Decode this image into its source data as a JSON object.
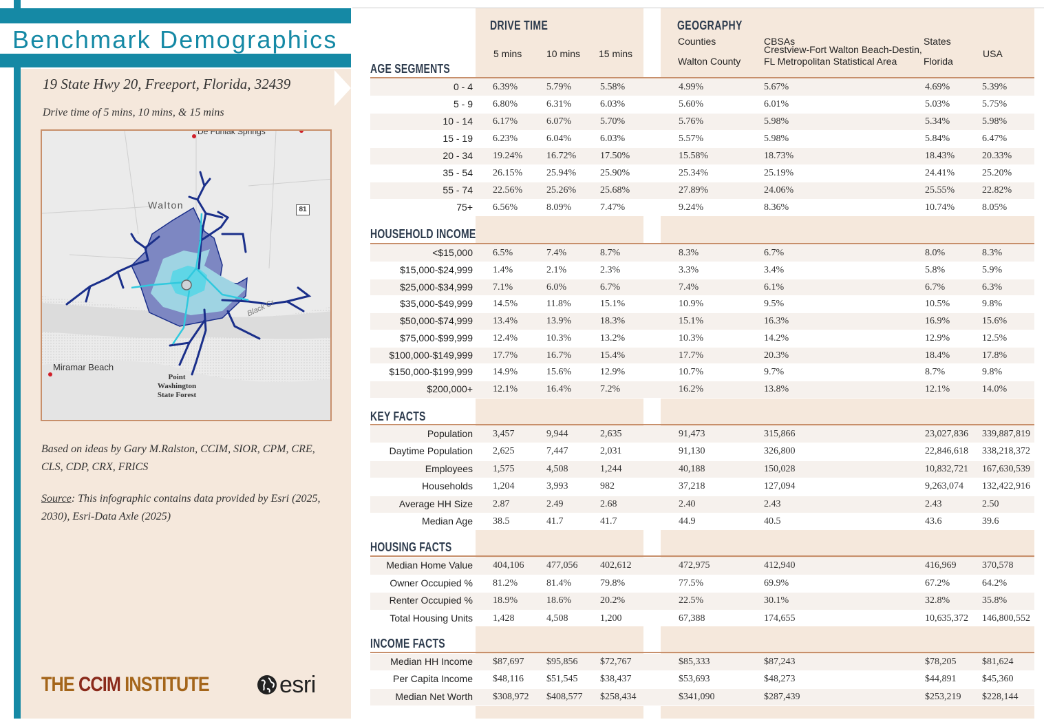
{
  "title": "Benchmark Demographics",
  "address": "19 State Hwy 20, Freeport, Florida, 32439",
  "drive_description": "Drive time of 5 mins, 10 mins, & 15 mins",
  "map": {
    "labels": {
      "defuniak": "De Funiak Springs",
      "walton": "Walton",
      "miramar": "Miramar Beach",
      "pwsf": "Point Washington State Forest",
      "blackcreek": "Black Cr",
      "shield": "81"
    },
    "colors": {
      "zone_15": "#7d87c2",
      "zone_10": "#9fd4e3",
      "zone_5": "#5fd6e6",
      "roads": "#1a2f8a",
      "border": "#c78f6b"
    }
  },
  "credit": "Based on ideas by Gary M.Ralston, CCIM, SIOR, CPM, CRE, CLS, CDP, CRX, FRICS",
  "source_label": "Source",
  "source_text": ": This infographic contains data provided by Esri (2025, 2030), Esri-Data Axle (2025)",
  "logos": {
    "ccim": [
      "THE ",
      "CCIM",
      " INSTITUTE"
    ],
    "esri": "esri"
  },
  "headers": {
    "drive_time": "DRIVE TIME",
    "geography": "GEOGRAPHY",
    "cols": [
      "5 mins",
      "10 mins",
      "15 mins"
    ],
    "counties": "Counties",
    "cbsas": "CBSAs",
    "states": "States",
    "walton_county": "Walton County",
    "cbsa_name": "Crestview-Fort Walton Beach-Destin, FL Metropolitan Statistical Area",
    "florida": "Florida",
    "usa": "USA"
  },
  "sections": [
    {
      "title": "AGE SEGMENTS",
      "rows": [
        {
          "label": "0 - 4",
          "values": [
            "6.39%",
            "5.79%",
            "5.58%",
            "4.99%",
            "5.67%",
            "4.69%",
            "5.39%"
          ]
        },
        {
          "label": "5 - 9",
          "values": [
            "6.80%",
            "6.31%",
            "6.03%",
            "5.60%",
            "6.01%",
            "5.03%",
            "5.75%"
          ]
        },
        {
          "label": "10 - 14",
          "values": [
            "6.17%",
            "6.07%",
            "5.70%",
            "5.76%",
            "5.98%",
            "5.34%",
            "5.98%"
          ]
        },
        {
          "label": "15 - 19",
          "values": [
            "6.23%",
            "6.04%",
            "6.03%",
            "5.57%",
            "5.98%",
            "5.84%",
            "6.47%"
          ]
        },
        {
          "label": "20 - 34",
          "values": [
            "19.24%",
            "16.72%",
            "17.50%",
            "15.58%",
            "18.73%",
            "18.43%",
            "20.33%"
          ]
        },
        {
          "label": "35 - 54",
          "values": [
            "26.15%",
            "25.94%",
            "25.90%",
            "25.34%",
            "25.19%",
            "24.41%",
            "25.20%"
          ]
        },
        {
          "label": "55 - 74",
          "values": [
            "22.56%",
            "25.26%",
            "25.68%",
            "27.89%",
            "24.06%",
            "25.55%",
            "22.82%"
          ]
        },
        {
          "label": "75+",
          "values": [
            "6.56%",
            "8.09%",
            "7.47%",
            "9.24%",
            "8.36%",
            "10.74%",
            "8.05%"
          ]
        }
      ]
    },
    {
      "title": "HOUSEHOLD INCOME",
      "rows": [
        {
          "label": "<$15,000",
          "values": [
            "6.5%",
            "7.4%",
            "8.7%",
            "8.3%",
            "6.7%",
            "8.0%",
            "8.3%"
          ]
        },
        {
          "label": "$15,000-$24,999",
          "values": [
            "1.4%",
            "2.1%",
            "2.3%",
            "3.3%",
            "3.4%",
            "5.8%",
            "5.9%"
          ]
        },
        {
          "label": "$25,000-$34,999",
          "values": [
            "7.1%",
            "6.0%",
            "6.7%",
            "7.4%",
            "6.1%",
            "6.7%",
            "6.3%"
          ]
        },
        {
          "label": "$35,000-$49,999",
          "values": [
            "14.5%",
            "11.8%",
            "15.1%",
            "10.9%",
            "9.5%",
            "10.5%",
            "9.8%"
          ]
        },
        {
          "label": "$50,000-$74,999",
          "values": [
            "13.4%",
            "13.9%",
            "18.3%",
            "15.1%",
            "16.3%",
            "16.9%",
            "15.6%"
          ]
        },
        {
          "label": "$75,000-$99,999",
          "values": [
            "12.4%",
            "10.3%",
            "13.2%",
            "10.3%",
            "14.2%",
            "12.9%",
            "12.5%"
          ]
        },
        {
          "label": "$100,000-$149,999",
          "values": [
            "17.7%",
            "16.7%",
            "15.4%",
            "17.7%",
            "20.3%",
            "18.4%",
            "17.8%"
          ]
        },
        {
          "label": "$150,000-$199,999",
          "values": [
            "14.9%",
            "15.6%",
            "12.9%",
            "10.7%",
            "9.7%",
            "8.7%",
            "9.8%"
          ]
        },
        {
          "label": "$200,000+",
          "values": [
            "12.1%",
            "16.4%",
            "7.2%",
            "16.2%",
            "13.8%",
            "12.1%",
            "14.0%"
          ]
        }
      ]
    },
    {
      "title": "KEY FACTS",
      "rows": [
        {
          "label": "Population",
          "values": [
            "3,457",
            "9,944",
            "2,635",
            "91,473",
            "315,866",
            "23,027,836",
            "339,887,819"
          ]
        },
        {
          "label": "Daytime Population",
          "values": [
            "2,625",
            "7,447",
            "2,031",
            "91,130",
            "326,800",
            "22,846,618",
            "338,218,372"
          ]
        },
        {
          "label": "Employees",
          "values": [
            "1,575",
            "4,508",
            "1,244",
            "40,188",
            "150,028",
            "10,832,721",
            "167,630,539"
          ]
        },
        {
          "label": "Households",
          "values": [
            "1,204",
            "3,993",
            "982",
            "37,218",
            "127,094",
            "9,263,074",
            "132,422,916"
          ]
        },
        {
          "label": "Average HH Size",
          "values": [
            "2.87",
            "2.49",
            "2.68",
            "2.40",
            "2.43",
            "2.43",
            "2.50"
          ]
        },
        {
          "label": "Median Age",
          "values": [
            "38.5",
            "41.7",
            "41.7",
            "44.9",
            "40.5",
            "43.6",
            "39.6"
          ]
        }
      ]
    },
    {
      "title": "HOUSING FACTS",
      "rows": [
        {
          "label": "Median Home Value",
          "values": [
            "404,106",
            "477,056",
            "402,612",
            "472,975",
            "412,940",
            "416,969",
            "370,578"
          ]
        },
        {
          "label": "Owner Occupied %",
          "values": [
            "81.2%",
            "81.4%",
            "79.8%",
            "77.5%",
            "69.9%",
            "67.2%",
            "64.2%"
          ]
        },
        {
          "label": "Renter Occupied %",
          "values": [
            "18.9%",
            "18.6%",
            "20.2%",
            "22.5%",
            "30.1%",
            "32.8%",
            "35.8%"
          ]
        },
        {
          "label": "Total Housing Units",
          "values": [
            "1,428",
            "4,508",
            "1,200",
            "67,388",
            "174,655",
            "10,635,372",
            "146,800,552"
          ]
        }
      ]
    },
    {
      "title": "INCOME FACTS",
      "rows": [
        {
          "label": "Median HH Income",
          "values": [
            "$87,697",
            "$95,856",
            "$72,767",
            "$85,333",
            "$87,243",
            "$78,205",
            "$81,624"
          ]
        },
        {
          "label": "Per Capita Income",
          "values": [
            "$48,116",
            "$51,545",
            "$38,437",
            "$53,693",
            "$48,273",
            "$44,891",
            "$45,360"
          ]
        },
        {
          "label": "Median Net Worth",
          "values": [
            "$308,972",
            "$408,577",
            "$258,434",
            "$341,090",
            "$287,439",
            "$253,219",
            "$228,144"
          ]
        }
      ]
    }
  ]
}
